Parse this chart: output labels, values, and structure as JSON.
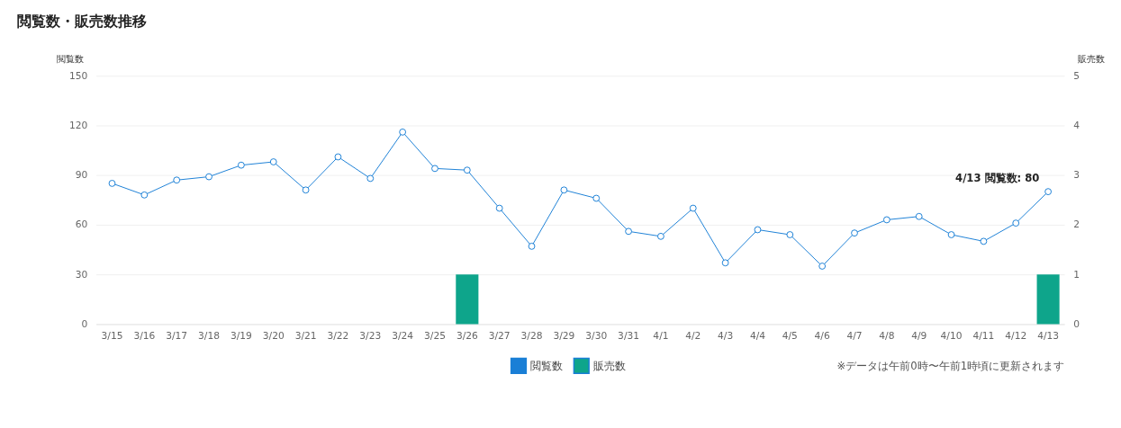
{
  "chart_data": {
    "type": "line",
    "title": "閲覧数・販売数推移",
    "categories": [
      "3/15",
      "3/16",
      "3/17",
      "3/18",
      "3/19",
      "3/20",
      "3/21",
      "3/22",
      "3/23",
      "3/24",
      "3/25",
      "3/26",
      "3/27",
      "3/28",
      "3/29",
      "3/30",
      "3/31",
      "4/1",
      "4/2",
      "4/3",
      "4/4",
      "4/5",
      "4/6",
      "4/7",
      "4/8",
      "4/9",
      "4/10",
      "4/11",
      "4/12",
      "4/13"
    ],
    "series": [
      {
        "name": "閲覧数",
        "color": "#1a7fd6",
        "values": [
          85,
          78,
          87,
          89,
          96,
          98,
          81,
          101,
          88,
          116,
          94,
          93,
          70,
          47,
          81,
          76,
          56,
          53,
          70,
          37,
          57,
          54,
          35,
          55,
          63,
          65,
          54,
          50,
          61,
          80
        ]
      },
      {
        "name": "販売数",
        "type": "bar",
        "axis": "y2",
        "color": "#0ea58b",
        "values": [
          0,
          0,
          0,
          0,
          0,
          0,
          0,
          0,
          0,
          0,
          0,
          1,
          0,
          0,
          0,
          0,
          0,
          0,
          0,
          0,
          0,
          0,
          0,
          0,
          0,
          0,
          0,
          0,
          0,
          1
        ]
      }
    ],
    "ylabel": "閲覧数",
    "y2label": "販売数",
    "ylim": [
      0,
      150
    ],
    "yticks": [
      0,
      30,
      60,
      90,
      120,
      150
    ],
    "y2lim": [
      0,
      5
    ],
    "y2ticks": [
      0,
      1,
      2,
      3,
      4,
      5
    ],
    "grid": "y",
    "legend": "bottom",
    "marker": "circle",
    "line_style": "solid",
    "annotations": [
      {
        "text": "4/13 閲覧数: 80",
        "x": "4/13",
        "y": 80
      },
      "※データは午前0時〜午前1時頃に更新されます"
    ]
  }
}
